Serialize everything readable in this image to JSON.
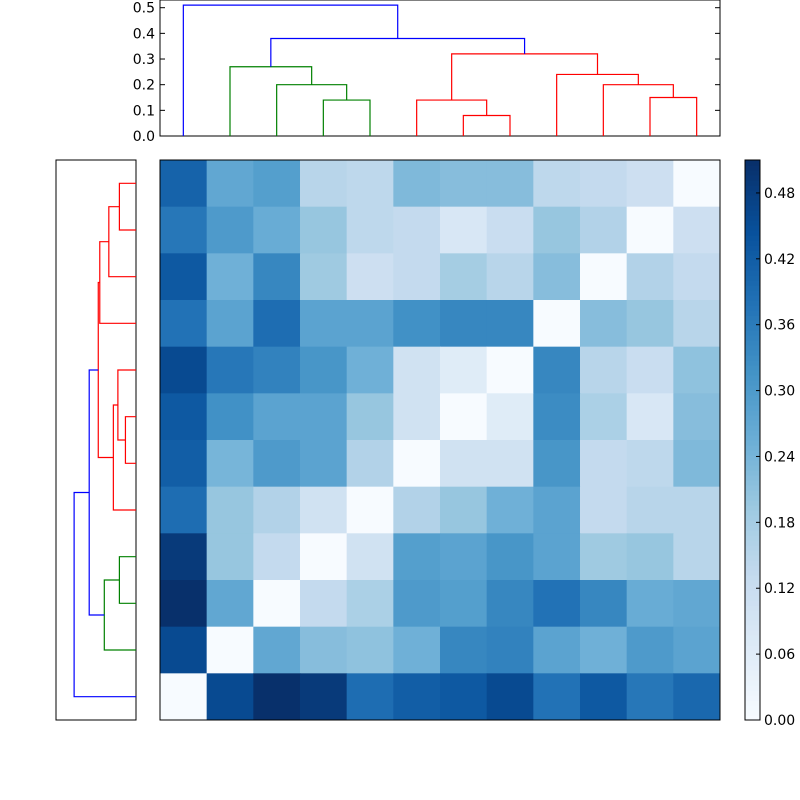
{
  "chart_data": [
    {
      "type": "dendrogram",
      "orientation": "top",
      "ylim": [
        0,
        0.53
      ],
      "yticks": [
        "0.0",
        "0.1",
        "0.2",
        "0.3",
        "0.4",
        "0.5"
      ],
      "leaf_order": [
        0,
        1,
        2,
        3,
        4,
        5,
        6,
        7,
        8,
        9,
        10,
        11
      ],
      "merges": [
        {
          "left": 2,
          "right": 3,
          "height": 0.14,
          "color": "#008000"
        },
        {
          "left": 1,
          "right": "c0",
          "height": 0.2,
          "color": "#008000"
        },
        {
          "left": 0,
          "right": "c1",
          "height": 0.27,
          "color": "#008000"
        },
        {
          "left": 5,
          "right": 6,
          "height": 0.08,
          "color": "#ff0000"
        },
        {
          "left": 4,
          "right": "c3",
          "height": 0.14,
          "color": "#ff0000"
        },
        {
          "left": 10,
          "right": 11,
          "height": 0.15,
          "color": "#ff0000"
        },
        {
          "left": 9,
          "right": "c5",
          "height": 0.2,
          "color": "#ff0000"
        },
        {
          "left": 8,
          "right": "c6",
          "height": 0.24,
          "color": "#ff0000"
        },
        {
          "left": "c4",
          "right": "c7",
          "height": 0.32,
          "color": "#ff0000"
        },
        {
          "left": "c2",
          "right": "c8",
          "height": 0.38,
          "color": "#0000ff"
        },
        {
          "left": "root_leaf",
          "right": "c9",
          "height": 0.51,
          "color": "#0000ff"
        }
      ]
    },
    {
      "type": "dendrogram",
      "orientation": "left",
      "xlim": [
        0.53,
        0
      ],
      "merges": [
        {
          "left": "r6",
          "right": "r7",
          "height": 0.08,
          "color": "#ff0000"
        },
        {
          "left": "r5",
          "right": "c0",
          "height": 0.12,
          "color": "#ff0000"
        },
        {
          "left": "r8",
          "right": "r9",
          "height": 0.14,
          "color": "#008000"
        },
        {
          "left": "r10",
          "right": "c2",
          "height": 0.17,
          "color": "#008000"
        },
        {
          "left": "c1",
          "right": "r4",
          "height": 0.15,
          "color": "#ff0000"
        },
        {
          "left": "r0",
          "right": "r1",
          "height": 0.11,
          "color": "#ff0000"
        },
        {
          "left": "c5",
          "right": "r2",
          "height": 0.18,
          "color": "#ff0000"
        },
        {
          "left": "c6",
          "right": "r3",
          "height": 0.24,
          "color": "#ff0000"
        },
        {
          "left": "c7",
          "right": "c4",
          "height": 0.25,
          "color": "#ff0000"
        },
        {
          "left": "c8",
          "right": "c3",
          "height": 0.31,
          "color": "#0000ff"
        },
        {
          "left": "c9",
          "right": "r11",
          "height": 0.41,
          "color": "#0000ff"
        }
      ]
    },
    {
      "type": "heatmap",
      "rows": 12,
      "cols": 12,
      "colormap": "Blues",
      "vmin": 0,
      "vmax": 0.51,
      "values": [
        [
          0.41,
          0.27,
          0.29,
          0.15,
          0.14,
          0.23,
          0.22,
          0.22,
          0.14,
          0.13,
          0.11,
          0.0
        ],
        [
          0.37,
          0.3,
          0.26,
          0.2,
          0.14,
          0.13,
          0.08,
          0.12,
          0.2,
          0.16,
          0.0,
          0.11
        ],
        [
          0.43,
          0.25,
          0.34,
          0.19,
          0.11,
          0.13,
          0.18,
          0.15,
          0.22,
          0.0,
          0.16,
          0.13
        ],
        [
          0.38,
          0.28,
          0.39,
          0.28,
          0.28,
          0.32,
          0.34,
          0.34,
          0.0,
          0.22,
          0.2,
          0.15
        ],
        [
          0.46,
          0.37,
          0.35,
          0.31,
          0.25,
          0.1,
          0.06,
          0.0,
          0.34,
          0.15,
          0.12,
          0.21
        ],
        [
          0.43,
          0.32,
          0.28,
          0.28,
          0.2,
          0.1,
          0.0,
          0.06,
          0.33,
          0.17,
          0.08,
          0.22
        ],
        [
          0.42,
          0.24,
          0.3,
          0.28,
          0.16,
          0.0,
          0.1,
          0.1,
          0.31,
          0.13,
          0.14,
          0.23
        ],
        [
          0.39,
          0.2,
          0.16,
          0.1,
          0.0,
          0.16,
          0.2,
          0.25,
          0.28,
          0.13,
          0.15,
          0.15
        ],
        [
          0.49,
          0.2,
          0.13,
          0.0,
          0.1,
          0.29,
          0.28,
          0.31,
          0.28,
          0.19,
          0.2,
          0.15
        ],
        [
          0.51,
          0.27,
          0.0,
          0.13,
          0.17,
          0.3,
          0.29,
          0.34,
          0.38,
          0.34,
          0.26,
          0.27
        ],
        [
          0.46,
          0.0,
          0.27,
          0.22,
          0.21,
          0.25,
          0.34,
          0.35,
          0.28,
          0.25,
          0.3,
          0.28
        ],
        [
          0.0,
          0.46,
          0.51,
          0.49,
          0.39,
          0.42,
          0.43,
          0.46,
          0.38,
          0.43,
          0.37,
          0.4
        ]
      ]
    },
    {
      "type": "colorbar",
      "vmin": 0,
      "vmax": 0.51,
      "ticks": [
        "0.00",
        "0.06",
        "0.12",
        "0.18",
        "0.24",
        "0.30",
        "0.36",
        "0.42",
        "0.48"
      ],
      "tick_values": [
        0.0,
        0.06,
        0.12,
        0.18,
        0.24,
        0.3,
        0.36,
        0.42,
        0.48
      ]
    }
  ]
}
